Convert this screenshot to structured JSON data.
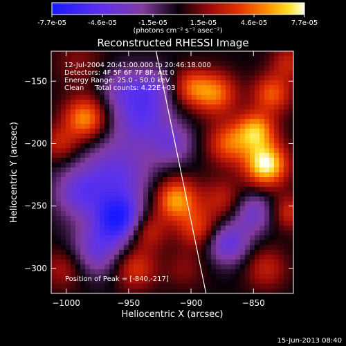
{
  "chart_data": {
    "type": "heatmap",
    "title": "Reconstructed RHESSI Image",
    "xlabel": "Heliocentric X (arcsec)",
    "ylabel": "Heliocentric Y (arcsec)",
    "xlim": [
      -1012,
      -818
    ],
    "ylim": [
      -320,
      -126
    ],
    "x_ticks": [
      -1000,
      -950,
      -900,
      -850
    ],
    "y_ticks": [
      -300,
      -250,
      -200,
      -150
    ],
    "colorbar": {
      "min": -7.7e-05,
      "max": 7.7e-05,
      "tick_labels": [
        "-7.7e-05",
        "-4.6e-05",
        "-1.5e-05",
        "1.5e-05",
        "4.6e-05",
        "7.7e-05"
      ],
      "unit_label": "(photons cm⁻² s⁻¹ asec⁻²)"
    },
    "annotations": [
      "12-Jul-2004 20:41:00.000 to 20:46:18.000",
      "Detectors: 4F 5F 6F 7F 8F, Att 0",
      "Energy Range: 25.0 - 50.0 keV",
      "Clean     Total counts: 4.22E+03"
    ],
    "peak_label": "Position of Peak = [-840,-217]",
    "limb_line": {
      "x": [
        -928,
        -888
      ],
      "y": [
        -126,
        -320
      ]
    },
    "blobs": [
      {
        "x": -990,
        "y": -135,
        "v": 0.2,
        "s": 14
      },
      {
        "x": -985,
        "y": -180,
        "v": 0.7,
        "s": 12
      },
      {
        "x": -1005,
        "y": -200,
        "v": 0.35,
        "s": 10
      },
      {
        "x": -960,
        "y": -225,
        "v": -0.55,
        "s": 20
      },
      {
        "x": -990,
        "y": -240,
        "v": -0.45,
        "s": 14
      },
      {
        "x": -958,
        "y": -260,
        "v": -0.85,
        "s": 13
      },
      {
        "x": -975,
        "y": -285,
        "v": -0.5,
        "s": 15
      },
      {
        "x": -940,
        "y": -178,
        "v": -0.55,
        "s": 16
      },
      {
        "x": -915,
        "y": -200,
        "v": -0.4,
        "s": 12
      },
      {
        "x": -930,
        "y": -155,
        "v": -0.35,
        "s": 12
      },
      {
        "x": -955,
        "y": -155,
        "v": -0.35,
        "s": 12
      },
      {
        "x": -1002,
        "y": -300,
        "v": 0.3,
        "s": 12
      },
      {
        "x": -945,
        "y": -300,
        "v": 0.45,
        "s": 12
      },
      {
        "x": -935,
        "y": -270,
        "v": 0.4,
        "s": 11
      },
      {
        "x": -912,
        "y": -245,
        "v": 0.75,
        "s": 12
      },
      {
        "x": -895,
        "y": -268,
        "v": 0.45,
        "s": 11
      },
      {
        "x": -905,
        "y": -300,
        "v": 0.2,
        "s": 12
      },
      {
        "x": -900,
        "y": -155,
        "v": 0.5,
        "s": 11
      },
      {
        "x": -880,
        "y": -160,
        "v": 0.6,
        "s": 12
      },
      {
        "x": -870,
        "y": -200,
        "v": 0.55,
        "s": 12
      },
      {
        "x": -840,
        "y": -217,
        "v": 1.0,
        "s": 12
      },
      {
        "x": -848,
        "y": -190,
        "v": 0.75,
        "s": 11
      },
      {
        "x": -835,
        "y": -160,
        "v": 0.55,
        "s": 11
      },
      {
        "x": -875,
        "y": -245,
        "v": 0.35,
        "s": 12
      },
      {
        "x": -870,
        "y": -280,
        "v": -0.55,
        "s": 12
      },
      {
        "x": -850,
        "y": -255,
        "v": -0.45,
        "s": 12
      },
      {
        "x": -840,
        "y": -300,
        "v": 0.35,
        "s": 12
      },
      {
        "x": -822,
        "y": -255,
        "v": 0.4,
        "s": 10
      },
      {
        "x": -822,
        "y": -135,
        "v": 0.35,
        "s": 10
      }
    ]
  },
  "footer": {
    "timestamp": "15-Jun-2013 08:40"
  }
}
